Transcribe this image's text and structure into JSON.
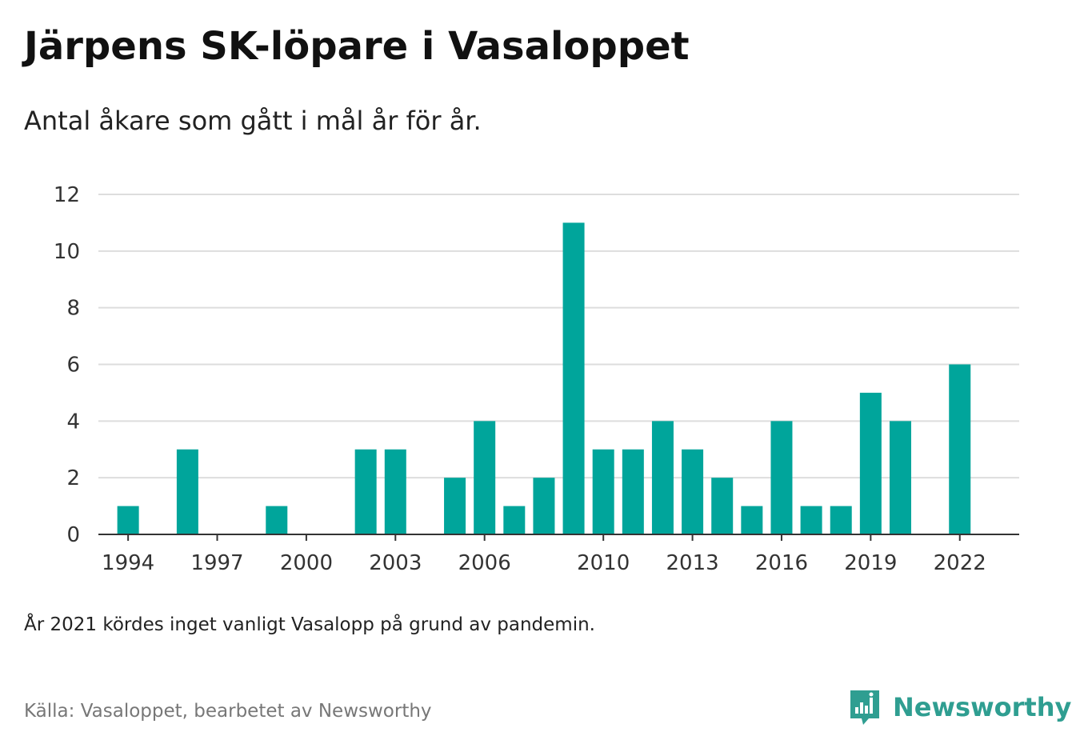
{
  "header": {
    "title": "Järpens SK-löpare i Vasaloppet",
    "subtitle": "Antal åkare som gått i mål år för år."
  },
  "footer": {
    "note": "År 2021 kördes inget vanligt Vasalopp på grund av pandemin.",
    "source": "Källa: Vasaloppet, bearbetet av Newsworthy",
    "brand": "Newsworthy",
    "brand_icon": "newsworthy-logo-icon"
  },
  "colors": {
    "bar": "#00a59b",
    "grid": "#dddddd",
    "axis": "#333333",
    "brand": "#2f9e91"
  },
  "chart_data": {
    "type": "bar",
    "title": "Järpens SK-löpare i Vasaloppet",
    "subtitle": "Antal åkare som gått i mål år för år.",
    "xlabel": "",
    "ylabel": "",
    "x_range": [
      1993,
      2024
    ],
    "ylim": [
      0,
      12
    ],
    "yticks": [
      0,
      2,
      4,
      6,
      8,
      10,
      12
    ],
    "xticks": [
      1994,
      1997,
      2000,
      2003,
      2006,
      2010,
      2013,
      2016,
      2019,
      2022
    ],
    "grid": true,
    "legend": "none",
    "data": [
      {
        "year": 1994,
        "value": 1
      },
      {
        "year": 1996,
        "value": 3
      },
      {
        "year": 1999,
        "value": 1
      },
      {
        "year": 2002,
        "value": 3
      },
      {
        "year": 2003,
        "value": 3
      },
      {
        "year": 2005,
        "value": 2
      },
      {
        "year": 2006,
        "value": 4
      },
      {
        "year": 2007,
        "value": 1
      },
      {
        "year": 2008,
        "value": 2
      },
      {
        "year": 2009,
        "value": 11
      },
      {
        "year": 2010,
        "value": 3
      },
      {
        "year": 2011,
        "value": 3
      },
      {
        "year": 2012,
        "value": 4
      },
      {
        "year": 2013,
        "value": 3
      },
      {
        "year": 2014,
        "value": 2
      },
      {
        "year": 2015,
        "value": 1
      },
      {
        "year": 2016,
        "value": 4
      },
      {
        "year": 2017,
        "value": 1
      },
      {
        "year": 2018,
        "value": 1
      },
      {
        "year": 2019,
        "value": 5
      },
      {
        "year": 2020,
        "value": 4
      },
      {
        "year": 2022,
        "value": 6
      }
    ]
  }
}
